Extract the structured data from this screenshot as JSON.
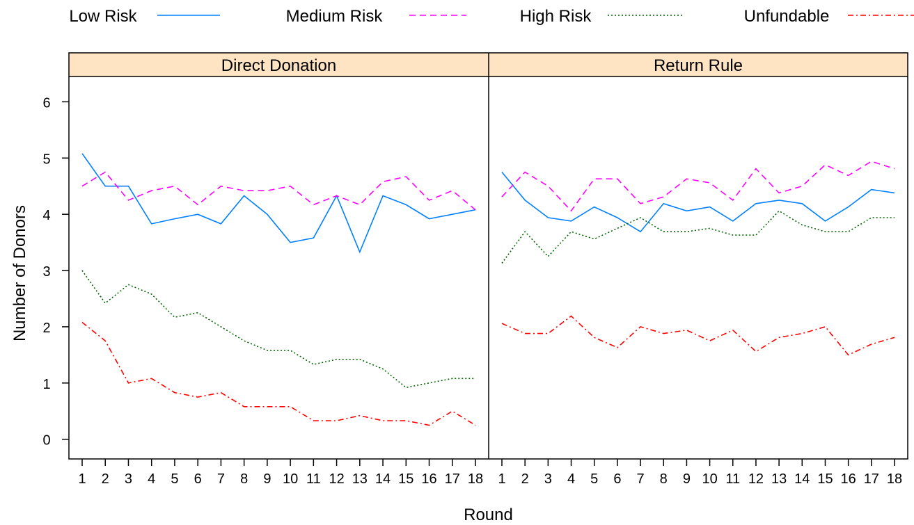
{
  "chart_data": {
    "type": "line",
    "xlabel": "Round",
    "ylabel": "Number of Donors",
    "ylim": [
      -0.35,
      6.45
    ],
    "y_ticks": [
      0,
      1,
      2,
      3,
      4,
      5,
      6
    ],
    "x": [
      1,
      2,
      3,
      4,
      5,
      6,
      7,
      8,
      9,
      10,
      11,
      12,
      13,
      14,
      15,
      16,
      17,
      18
    ],
    "legend": {
      "position": "top"
    },
    "series_styles": [
      {
        "name": "Low Risk",
        "color": "#0080ff",
        "dash": ""
      },
      {
        "name": "Medium Risk",
        "color": "#ff00ff",
        "dash": "9,6"
      },
      {
        "name": "High Risk",
        "color": "#006400",
        "dash": "2,3"
      },
      {
        "name": "Unfundable",
        "color": "#ff0000",
        "dash": "8,4,2,4"
      }
    ],
    "panels": [
      {
        "title": "Direct Donation",
        "series": [
          {
            "name": "Low Risk",
            "values": [
              5.08,
              4.5,
              4.5,
              3.83,
              3.92,
              4.0,
              3.83,
              4.33,
              4.0,
              3.5,
              3.58,
              4.33,
              3.33,
              4.33,
              4.17,
              3.92,
              4.0,
              4.08
            ]
          },
          {
            "name": "Medium Risk",
            "values": [
              4.5,
              4.75,
              4.25,
              4.42,
              4.5,
              4.17,
              4.5,
              4.42,
              4.42,
              4.5,
              4.17,
              4.33,
              4.17,
              4.58,
              4.67,
              4.25,
              4.42,
              4.08
            ]
          },
          {
            "name": "High Risk",
            "values": [
              3.0,
              2.42,
              2.75,
              2.58,
              2.17,
              2.25,
              2.0,
              1.75,
              1.58,
              1.58,
              1.33,
              1.42,
              1.42,
              1.25,
              0.92,
              1.0,
              1.08,
              1.08
            ]
          },
          {
            "name": "Unfundable",
            "values": [
              2.08,
              1.75,
              1.0,
              1.08,
              0.83,
              0.75,
              0.83,
              0.58,
              0.58,
              0.58,
              0.33,
              0.33,
              0.42,
              0.33,
              0.33,
              0.25,
              0.5,
              0.25
            ]
          }
        ]
      },
      {
        "title": "Return Rule",
        "series": [
          {
            "name": "Low Risk",
            "values": [
              4.75,
              4.25,
              3.94,
              3.88,
              4.13,
              3.94,
              3.69,
              4.19,
              4.06,
              4.13,
              3.88,
              4.19,
              4.25,
              4.19,
              3.88,
              4.13,
              4.44,
              4.38
            ]
          },
          {
            "name": "Medium Risk",
            "values": [
              4.31,
              4.75,
              4.5,
              4.06,
              4.63,
              4.63,
              4.19,
              4.31,
              4.63,
              4.56,
              4.25,
              4.81,
              4.38,
              4.5,
              4.88,
              4.69,
              4.94,
              4.81
            ]
          },
          {
            "name": "High Risk",
            "values": [
              3.13,
              3.69,
              3.25,
              3.69,
              3.56,
              3.75,
              3.94,
              3.69,
              3.69,
              3.75,
              3.63,
              3.63,
              4.06,
              3.81,
              3.69,
              3.69,
              3.94,
              3.94
            ]
          },
          {
            "name": "Unfundable",
            "values": [
              2.06,
              1.88,
              1.88,
              2.19,
              1.81,
              1.63,
              2.0,
              1.88,
              1.94,
              1.75,
              1.94,
              1.56,
              1.81,
              1.88,
              2.0,
              1.5,
              1.69,
              1.81
            ]
          }
        ]
      }
    ]
  }
}
